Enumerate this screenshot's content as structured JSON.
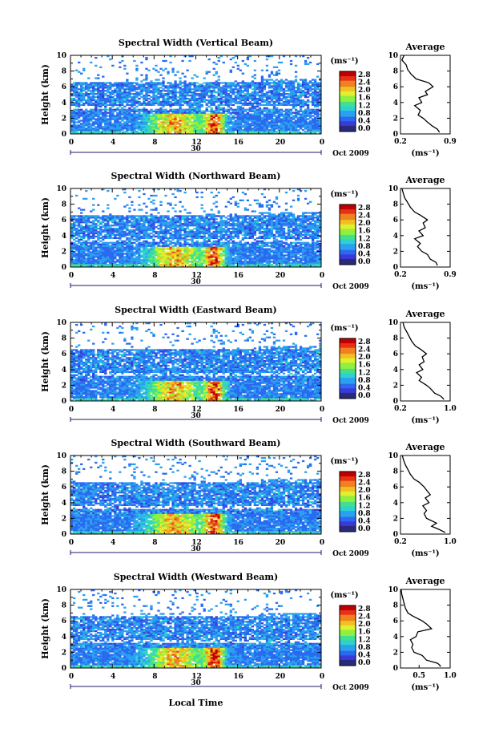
{
  "figure": {
    "xlabel": "Local Time",
    "date_label": "Oct 2009",
    "day_label": "30",
    "colorbar_unit": "(ms⁻¹)",
    "profile_xlabel": "(ms⁻¹)",
    "profile_title": "Average",
    "ylabel": "Height (km)",
    "colorbar_ticks": [
      "0.0",
      "0.4",
      "0.8",
      "1.2",
      "1.6",
      "2.0",
      "2.4",
      "2.8"
    ],
    "colormap": [
      "#2a2a7a",
      "#3a3ad8",
      "#2a6af0",
      "#2aa0f0",
      "#30d0d0",
      "#40e090",
      "#90f040",
      "#e0f030",
      "#f0c020",
      "#f08020",
      "#e83018",
      "#c00000"
    ]
  },
  "chart_data": [
    {
      "type": "heatmap",
      "title": "Spectral Width (Vertical Beam)",
      "x_ticks": [
        "0",
        "4",
        "8",
        "12",
        "16",
        "20",
        "0"
      ],
      "y_ticks": [
        "0",
        "2",
        "4",
        "6",
        "8",
        "10"
      ],
      "xlim": [
        0,
        24
      ],
      "ylim": [
        0,
        10
      ],
      "profile": {
        "type": "line",
        "title": "Average",
        "x_ticks": [
          "0.2",
          "0.9"
        ],
        "xlim": [
          0.2,
          0.9
        ],
        "y_ticks": [
          "0",
          "2",
          "4",
          "6",
          "8",
          "10"
        ],
        "points": [
          [
            0.75,
            0.2
          ],
          [
            0.72,
            0.6
          ],
          [
            0.65,
            1.0
          ],
          [
            0.58,
            1.5
          ],
          [
            0.52,
            2.0
          ],
          [
            0.45,
            2.4
          ],
          [
            0.48,
            3.0
          ],
          [
            0.4,
            3.6
          ],
          [
            0.5,
            4.0
          ],
          [
            0.46,
            4.6
          ],
          [
            0.58,
            5.0
          ],
          [
            0.55,
            5.4
          ],
          [
            0.66,
            6.0
          ],
          [
            0.6,
            6.5
          ],
          [
            0.42,
            7.0
          ],
          [
            0.35,
            7.6
          ],
          [
            0.3,
            8.2
          ],
          [
            0.28,
            8.8
          ],
          [
            0.22,
            9.4
          ],
          [
            0.25,
            10.0
          ]
        ]
      }
    },
    {
      "type": "heatmap",
      "title": "Spectral Width (Northward Beam)",
      "x_ticks": [
        "0",
        "4",
        "8",
        "12",
        "16",
        "20",
        "0"
      ],
      "y_ticks": [
        "0",
        "2",
        "4",
        "6",
        "8",
        "10"
      ],
      "xlim": [
        0,
        24
      ],
      "ylim": [
        0,
        10
      ],
      "profile": {
        "type": "line",
        "title": "Average",
        "x_ticks": [
          "0.2",
          "0.9"
        ],
        "xlim": [
          0.2,
          0.9
        ],
        "y_ticks": [
          "0",
          "2",
          "4",
          "6",
          "8",
          "10"
        ],
        "points": [
          [
            0.72,
            0.2
          ],
          [
            0.7,
            0.6
          ],
          [
            0.62,
            1.0
          ],
          [
            0.58,
            1.6
          ],
          [
            0.5,
            2.0
          ],
          [
            0.44,
            2.6
          ],
          [
            0.48,
            3.0
          ],
          [
            0.4,
            3.6
          ],
          [
            0.52,
            4.0
          ],
          [
            0.46,
            4.6
          ],
          [
            0.55,
            5.0
          ],
          [
            0.52,
            5.6
          ],
          [
            0.58,
            6.0
          ],
          [
            0.48,
            6.6
          ],
          [
            0.4,
            7.0
          ],
          [
            0.34,
            7.6
          ],
          [
            0.3,
            8.2
          ],
          [
            0.26,
            8.8
          ],
          [
            0.24,
            9.4
          ],
          [
            0.22,
            10.0
          ]
        ]
      }
    },
    {
      "type": "heatmap",
      "title": "Spectral Width (Eastward Beam)",
      "x_ticks": [
        "0",
        "4",
        "8",
        "12",
        "16",
        "20",
        "0"
      ],
      "y_ticks": [
        "0",
        "2",
        "4",
        "6",
        "8",
        "10"
      ],
      "xlim": [
        0,
        24
      ],
      "ylim": [
        0,
        10
      ],
      "profile": {
        "type": "line",
        "title": "Average",
        "x_ticks": [
          "0.2",
          "1.0"
        ],
        "xlim": [
          0.2,
          1.0
        ],
        "y_ticks": [
          "0",
          "2",
          "4",
          "6",
          "8",
          "10"
        ],
        "points": [
          [
            0.9,
            0.2
          ],
          [
            0.85,
            0.6
          ],
          [
            0.75,
            1.0
          ],
          [
            0.68,
            1.6
          ],
          [
            0.62,
            2.0
          ],
          [
            0.5,
            2.6
          ],
          [
            0.54,
            3.0
          ],
          [
            0.46,
            3.6
          ],
          [
            0.56,
            4.0
          ],
          [
            0.5,
            4.6
          ],
          [
            0.58,
            5.0
          ],
          [
            0.55,
            5.6
          ],
          [
            0.62,
            6.0
          ],
          [
            0.52,
            6.6
          ],
          [
            0.44,
            7.0
          ],
          [
            0.38,
            7.6
          ],
          [
            0.34,
            8.2
          ],
          [
            0.3,
            8.8
          ],
          [
            0.26,
            9.4
          ],
          [
            0.24,
            10.0
          ]
        ]
      }
    },
    {
      "type": "heatmap",
      "title": "Spectral Width (Southward Beam)",
      "x_ticks": [
        "0",
        "4",
        "8",
        "12",
        "16",
        "20",
        "0"
      ],
      "y_ticks": [
        "0",
        "2",
        "4",
        "6",
        "8",
        "10"
      ],
      "xlim": [
        0,
        24
      ],
      "ylim": [
        0,
        10
      ],
      "profile": {
        "type": "line",
        "title": "Average",
        "x_ticks": [
          "0.2",
          "1.0"
        ],
        "xlim": [
          0.2,
          1.0
        ],
        "y_ticks": [
          "0",
          "2",
          "4",
          "6",
          "8",
          "10"
        ],
        "points": [
          [
            0.92,
            0.2
          ],
          [
            0.82,
            0.6
          ],
          [
            0.7,
            1.0
          ],
          [
            0.78,
            1.4
          ],
          [
            0.62,
            2.0
          ],
          [
            0.58,
            2.6
          ],
          [
            0.62,
            3.0
          ],
          [
            0.56,
            3.6
          ],
          [
            0.66,
            4.0
          ],
          [
            0.6,
            4.6
          ],
          [
            0.68,
            5.0
          ],
          [
            0.62,
            5.6
          ],
          [
            0.58,
            6.0
          ],
          [
            0.5,
            6.6
          ],
          [
            0.42,
            7.0
          ],
          [
            0.36,
            7.6
          ],
          [
            0.32,
            8.2
          ],
          [
            0.28,
            8.8
          ],
          [
            0.25,
            9.4
          ],
          [
            0.23,
            10.0
          ]
        ]
      }
    },
    {
      "type": "heatmap",
      "title": "Spectral Width (Westward Beam)",
      "x_ticks": [
        "0",
        "4",
        "8",
        "12",
        "16",
        "20",
        "0"
      ],
      "y_ticks": [
        "0",
        "2",
        "4",
        "6",
        "8",
        "10"
      ],
      "xlim": [
        0,
        24
      ],
      "ylim": [
        0,
        10
      ],
      "profile": {
        "type": "line",
        "title": "Average",
        "x_ticks": [
          "0.5",
          "1.0"
        ],
        "xlim": [
          0.2,
          1.0
        ],
        "y_ticks": [
          "0",
          "2",
          "4",
          "6",
          "8",
          "10"
        ],
        "points": [
          [
            0.85,
            0.2
          ],
          [
            0.8,
            0.6
          ],
          [
            0.62,
            1.0
          ],
          [
            0.55,
            1.6
          ],
          [
            0.42,
            2.0
          ],
          [
            0.38,
            2.6
          ],
          [
            0.4,
            3.0
          ],
          [
            0.36,
            3.6
          ],
          [
            0.45,
            4.0
          ],
          [
            0.48,
            4.6
          ],
          [
            0.7,
            5.0
          ],
          [
            0.62,
            5.6
          ],
          [
            0.55,
            6.0
          ],
          [
            0.4,
            6.6
          ],
          [
            0.32,
            7.0
          ],
          [
            0.28,
            7.6
          ],
          [
            0.26,
            8.2
          ],
          [
            0.24,
            8.8
          ],
          [
            0.22,
            9.4
          ],
          [
            0.21,
            10.0
          ]
        ]
      }
    }
  ]
}
